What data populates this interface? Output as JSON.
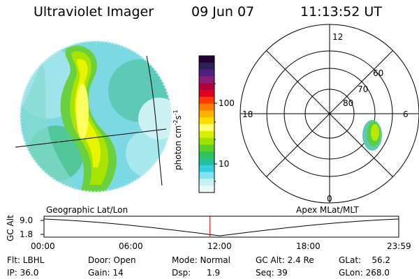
{
  "header": {
    "instrument": "Ultraviolet Imager",
    "date": "09 Jun 07",
    "time": "11:13:52 UT"
  },
  "colorbar": {
    "label": "photon cm",
    "label_exp1": "-2",
    "label_mid": "s",
    "label_exp2": "-1",
    "ticks": [
      "100",
      "10"
    ],
    "colors": [
      "#220033",
      "#30205a",
      "#502080",
      "#8a1e72",
      "#b3003c",
      "#e00020",
      "#ff3b00",
      "#ff7a00",
      "#ffb300",
      "#ffe000",
      "#ffff70",
      "#d8f000",
      "#9ee200",
      "#5ccf2a",
      "#30c25c",
      "#22bfa0",
      "#36cfe0",
      "#80e4ee",
      "#c6f2f4",
      "#eafaf8"
    ]
  },
  "polar": {
    "mlt_labels": {
      "top": "12",
      "bottom": "0",
      "left": "18",
      "right": "6"
    },
    "lat_labels": [
      "60",
      "70",
      "80"
    ]
  },
  "timeline": {
    "left_label": "Geographic Lat/Lon",
    "right_label": "Apex  MLat/MLT",
    "axis_label": "GC Alt",
    "y_ticks": [
      "9.0",
      "1.8"
    ],
    "x_ticks": [
      "00:00",
      "06:00",
      "12:00",
      "18:00",
      "23:59"
    ],
    "marker_time_hours": 11.23
  },
  "footer": {
    "flt": "Flt: LBHL",
    "ip": "IP: 36.0",
    "door": "Door: Open",
    "gain": "Gain: 14",
    "mode": "Mode: Normal",
    "dsp": "Dsp:      1.9",
    "gcalt": "GC Alt: 2.4 Re",
    "seq": "Seq: 39",
    "glat": "GLat:    56.2",
    "glon": "GLon: 268.0"
  }
}
